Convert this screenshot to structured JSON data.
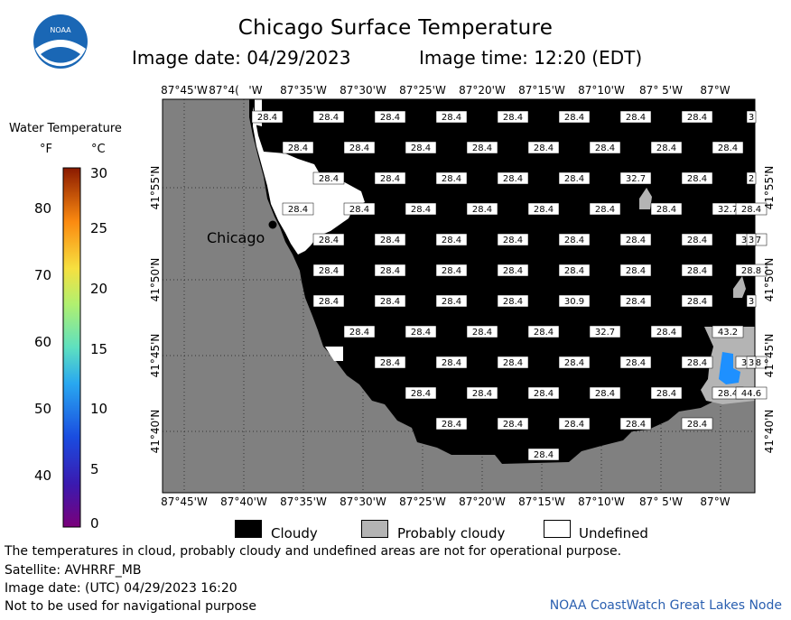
{
  "header": {
    "title": "Chicago Surface Temperature",
    "image_date": "Image date: 04/29/2023",
    "image_time": "Image time: 12:20 (EDT)"
  },
  "logo": {
    "text": "NOAA"
  },
  "colorbar": {
    "title": "Water Temperature",
    "unit_f": "°F",
    "unit_c": "°C",
    "f_ticks": [
      "80",
      "70",
      "60",
      "50",
      "40"
    ],
    "c_ticks": [
      "30",
      "25",
      "20",
      "15",
      "10",
      "5",
      "0"
    ]
  },
  "axes": {
    "lon_ticks": [
      "87°45'W",
      "87°40'W",
      "87°35'W",
      "87°30'W",
      "87°25'W",
      "87°20'W",
      "87°15'W",
      "87°10'W",
      "87° 5'W",
      "87°W"
    ],
    "lon_ticks_top": [
      "87°45'W",
      "87°4(",
      "'W",
      "87°35'W",
      "87°30'W",
      "87°25'W",
      "87°20'W",
      "87°15'W",
      "87°10'W",
      "87° 5'W",
      "87°W"
    ],
    "lat_ticks": [
      "41°55'N",
      "41°50'N",
      "41°45'N",
      "41°40'N"
    ]
  },
  "map": {
    "city": "Chicago",
    "colors": {
      "land": "#808080",
      "cloud": "#000000",
      "probably_cloudy": "#b4b4b4",
      "undefined": "#ffffff",
      "warm_water": "#1e90ff"
    },
    "temp_rows": [
      {
        "labels": [
          "28.4",
          "28.4",
          "28.4",
          "28.4",
          "28.4",
          "28.4",
          "28.4",
          "28.4",
          "3"
        ]
      },
      {
        "labels": [
          "28.4",
          "28.4",
          "28.4",
          "28.4",
          "28.4",
          "28.4",
          "28.4",
          "28.4"
        ]
      },
      {
        "labels": [
          "28.4",
          "28.4",
          "28.4",
          "28.4",
          "28.4",
          "32.7",
          "28.4",
          "2"
        ]
      },
      {
        "labels": [
          "28.4",
          "28.4",
          "28.4",
          "28.4",
          "28.4",
          "28.4",
          "28.4",
          "32.7",
          "28.4"
        ]
      },
      {
        "labels": [
          "28.4",
          "28.4",
          "28.4",
          "28.4",
          "28.4",
          "28.4",
          "28.4",
          "32.7",
          "3"
        ]
      },
      {
        "labels": [
          "28.4",
          "28.4",
          "28.4",
          "28.4",
          "28.4",
          "28.4",
          "28.4",
          "28.8"
        ]
      },
      {
        "labels": [
          "28.4",
          "28.4",
          "28.4",
          "28.4",
          "30.9",
          "28.4",
          "28.4",
          "3"
        ]
      },
      {
        "labels": [
          "28.4",
          "28.4",
          "28.4",
          "28.4",
          "32.7",
          "28.4",
          "43.2"
        ]
      },
      {
        "labels": [
          "28.4",
          "28.4",
          "28.4",
          "28.4",
          "28.4",
          "28.4",
          "37.8",
          "3"
        ]
      },
      {
        "labels": [
          "28.4",
          "28.4",
          "28.4",
          "28.4",
          "28.4",
          "28.4",
          "44.6"
        ]
      },
      {
        "labels": [
          "28.4",
          "28.4",
          "28.4",
          "28.4",
          "28.4"
        ]
      },
      {
        "labels": [
          "28.4"
        ]
      }
    ]
  },
  "legend": {
    "cloudy": "Cloudy",
    "probably_cloudy": "Probably cloudy",
    "undefined": "Undefined"
  },
  "footer": {
    "line1": "The temperatures in cloud, probably cloudy and undefined areas are not for operational purpose.",
    "line2": "Satellite: AVHRRF_MB",
    "line3": "Image date: (UTC) 04/29/2023  16:20",
    "line4": "Not to be used for navigational purpose",
    "node": "NOAA CoastWatch Great Lakes Node"
  }
}
